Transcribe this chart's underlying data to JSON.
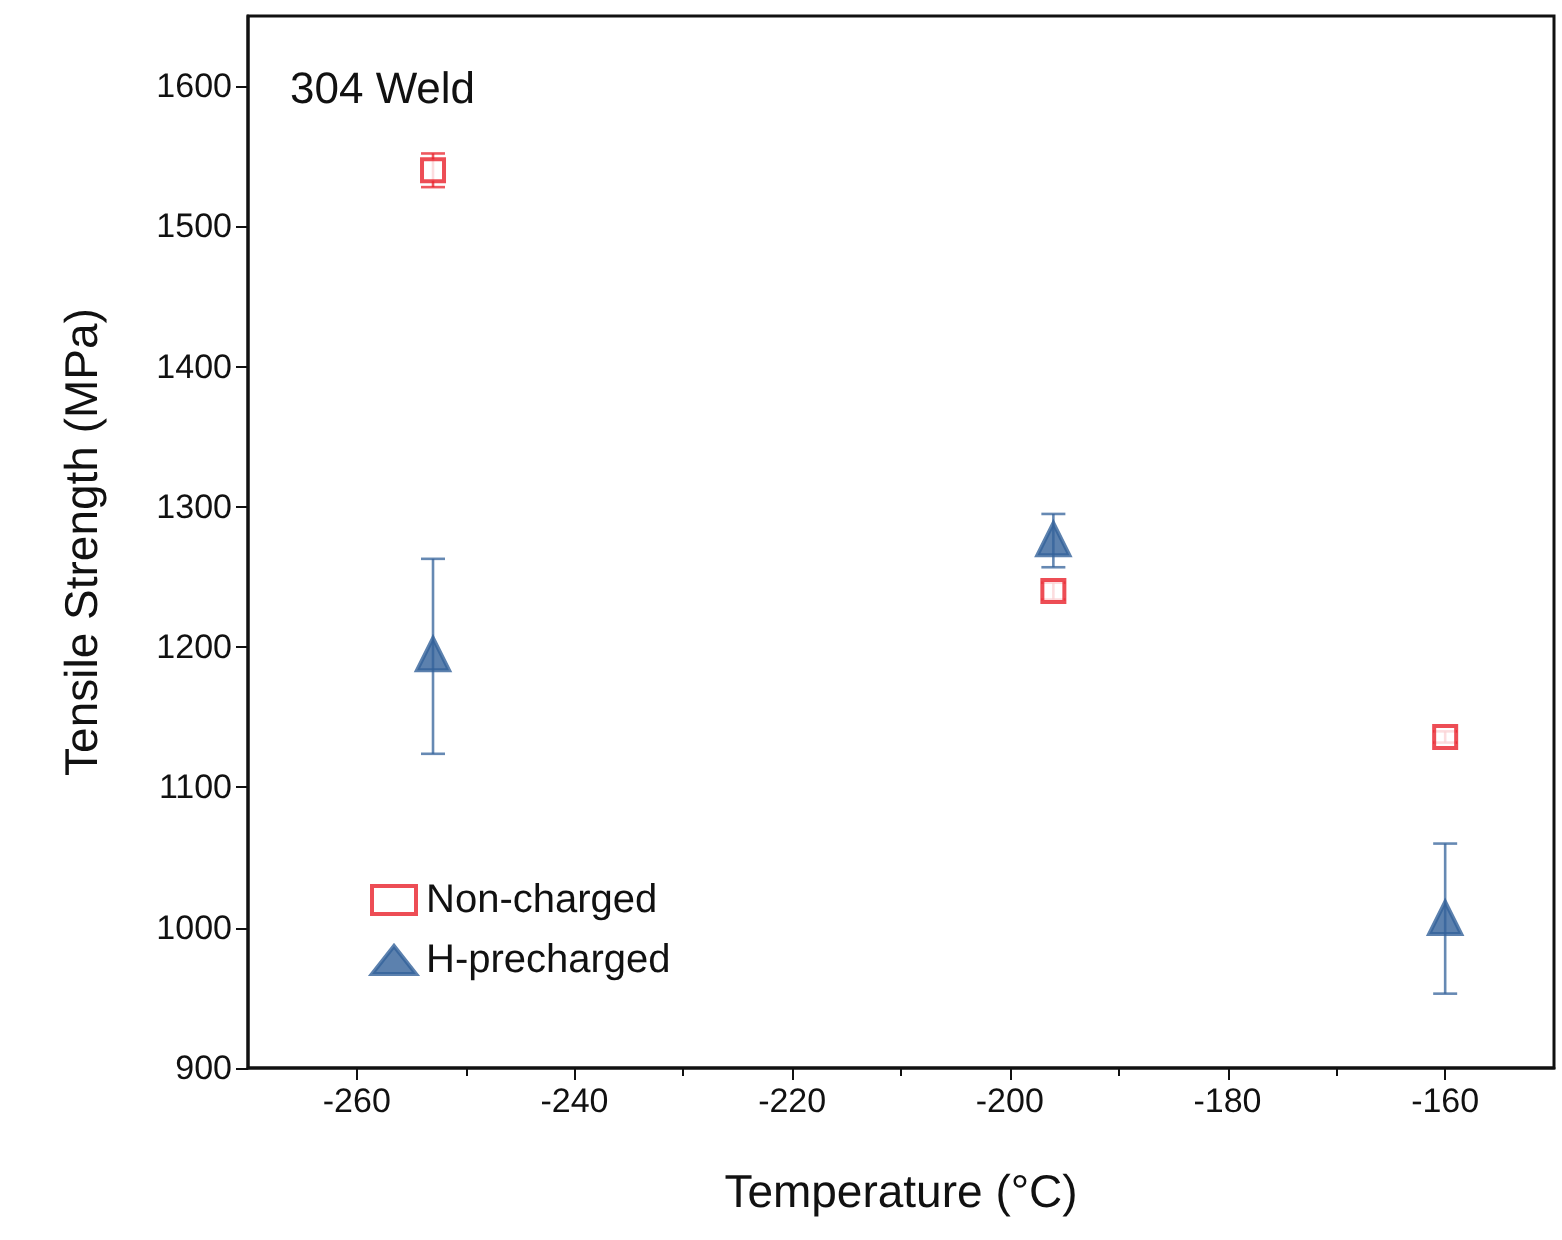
{
  "chart_data": {
    "type": "scatter",
    "xlabel": "Temperature (°C)",
    "ylabel": "Tensile Strength (MPa)",
    "annotations": [
      "304 Weld"
    ],
    "xlim": [
      -270,
      -150
    ],
    "xticks": [
      -260,
      -240,
      -220,
      -200,
      -180,
      -160
    ],
    "ylim": [
      900,
      1650
    ],
    "yticks": [
      900,
      1000,
      1100,
      1200,
      1300,
      1400,
      1500,
      1600
    ],
    "legend": "bottom left",
    "grid": false,
    "series": [
      {
        "name": "Non-charged",
        "color": "#e8202a",
        "marker": "square",
        "x": [
          -253,
          -196,
          -160
        ],
        "values": [
          1540,
          1240,
          1136
        ],
        "errors": [
          12,
          6,
          4
        ]
      },
      {
        "name": "H-precharged",
        "color": "#33629a",
        "marker": "triangle",
        "x": [
          -253,
          -196,
          -160
        ],
        "values": [
          1195,
          1277,
          1007
        ],
        "errors": [
          [
            1124,
            1263
          ],
          [
            1257,
            1295
          ],
          [
            953,
            1060
          ]
        ]
      }
    ]
  }
}
